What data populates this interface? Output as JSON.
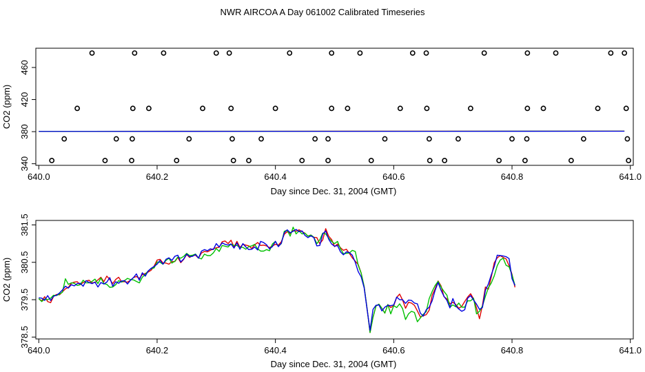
{
  "title": "NWR AIRCOA A  Day 061002  Calibrated Timeseries",
  "colors": {
    "red": "#e00000",
    "green": "#00c000",
    "blue": "#0000e0",
    "axis": "#000000",
    "points": "#000000"
  },
  "chart_data": [
    {
      "type": "scatter",
      "xlabel": "Day since Dec. 31, 2004 (GMT)",
      "ylabel": "CO2 (ppm)",
      "xlim": [
        639.995,
        641.005
      ],
      "ylim": [
        338,
        484
      ],
      "xticks": [
        "640.0",
        "640.2",
        "640.4",
        "640.6",
        "640.8",
        "641.0"
      ],
      "yticks": [
        "340",
        "380",
        "420",
        "460"
      ],
      "points_x": [
        640.09,
        640.162,
        640.211,
        640.3,
        640.322,
        640.424,
        640.495,
        640.543,
        640.632,
        640.655,
        640.753,
        640.826,
        640.874,
        640.967,
        640.99,
        640.065,
        640.159,
        640.186,
        640.277,
        640.325,
        640.4,
        640.495,
        640.522,
        640.611,
        640.656,
        640.73,
        640.826,
        640.853,
        640.945,
        640.993,
        640.043,
        640.131,
        640.158,
        640.254,
        640.327,
        640.376,
        640.467,
        640.489,
        640.585,
        640.66,
        640.709,
        640.8,
        640.825,
        640.921,
        640.995,
        640.022,
        640.112,
        640.157,
        640.233,
        640.329,
        640.355,
        640.445,
        640.489,
        640.562,
        640.661,
        640.686,
        640.778,
        640.822,
        640.9,
        640.997
      ],
      "points_y": [
        478,
        478,
        478,
        478,
        478,
        478,
        478,
        478,
        478,
        478,
        478,
        478,
        478,
        478,
        478,
        409,
        409,
        409,
        409,
        409,
        409,
        409,
        409,
        409,
        409,
        409,
        409,
        409,
        409,
        409,
        371,
        371,
        371,
        371,
        371,
        371,
        371,
        371,
        371,
        371,
        371,
        371,
        371,
        371,
        371,
        344,
        344,
        344,
        344,
        344,
        344,
        344,
        344,
        344,
        344,
        344,
        344,
        344,
        344,
        344
      ],
      "series_x": [
        640.0,
        640.99
      ],
      "series": [
        {
          "color": "red",
          "values": [
            380.4,
            380.7
          ]
        },
        {
          "color": "green",
          "values": [
            380.4,
            380.6
          ]
        },
        {
          "color": "blue",
          "values": [
            380.3,
            380.5
          ]
        }
      ]
    },
    {
      "type": "line",
      "xlabel": "Day since Dec. 31, 2004 (GMT)",
      "ylabel": "CO2 (ppm)",
      "xlim": [
        639.995,
        641.005
      ],
      "ylim": [
        378.45,
        381.62
      ],
      "xticks": [
        "640.0",
        "640.2",
        "640.4",
        "640.6",
        "640.8",
        "641.0"
      ],
      "yticks": [
        "378.5",
        "379.5",
        "380.5",
        "381.5"
      ],
      "x_start": 640.0,
      "x_step": 0.005,
      "series": [
        {
          "color": "red",
          "values": [
            379.52,
            379.47,
            379.58,
            379.45,
            379.42,
            379.59,
            379.64,
            379.63,
            379.71,
            379.79,
            379.83,
            379.94,
            379.97,
            379.98,
            379.9,
            379.96,
            380.0,
            380.02,
            379.95,
            379.96,
            380.03,
            380.1,
            379.98,
            380.13,
            380.04,
            379.93,
            380.04,
            380.1,
            379.98,
            379.98,
            379.97,
            380.02,
            380.09,
            380.12,
            380.07,
            380.17,
            380.2,
            380.24,
            380.29,
            380.4,
            380.56,
            380.58,
            380.48,
            380.48,
            380.45,
            380.52,
            380.52,
            380.63,
            380.49,
            380.58,
            380.71,
            380.63,
            380.68,
            380.69,
            380.61,
            380.75,
            380.79,
            380.78,
            380.82,
            380.86,
            380.89,
            380.9,
            381.05,
            381.07,
            381.0,
            381.09,
            380.91,
            381.06,
            380.9,
            380.98,
            380.96,
            380.94,
            380.87,
            380.97,
            381.03,
            380.95,
            380.96,
            380.94,
            380.89,
            380.94,
            380.98,
            380.96,
            381.05,
            381.25,
            381.32,
            381.27,
            381.35,
            381.33,
            381.37,
            381.32,
            381.28,
            381.2,
            381.23,
            381.17,
            381.16,
            381.0,
            381.1,
            381.4,
            381.2,
            381.11,
            380.92,
            380.99,
            380.89,
            380.82,
            380.85,
            380.74,
            380.62,
            380.53,
            380.44,
            380.21,
            379.85,
            379.26,
            378.62,
            379.03,
            379.33,
            379.38,
            379.27,
            379.14,
            379.37,
            379.29,
            379.34,
            379.56,
            379.65,
            379.49,
            379.27,
            379.43,
            379.41,
            379.35,
            379.2,
            379.04,
            379.07,
            379.1,
            379.22,
            379.62,
            379.79,
            380.0,
            379.87,
            379.58,
            379.52,
            379.39,
            379.43,
            379.37,
            379.27,
            379.32,
            379.45,
            379.57,
            379.66,
            379.52,
            379.28,
            378.99,
            379.35,
            379.84,
            379.78,
            380.11,
            380.49,
            380.62,
            380.68,
            380.63,
            380.59,
            380.41,
            380.18,
            379.83
          ]
        },
        {
          "color": "green",
          "values": [
            379.53,
            379.45,
            379.52,
            379.5,
            379.54,
            379.62,
            379.61,
            379.65,
            379.7,
            380.06,
            379.91,
            379.95,
            379.94,
            379.88,
            379.9,
            380.02,
            379.95,
            379.95,
            379.99,
            380.05,
            379.93,
            380.08,
            379.93,
            379.91,
            379.83,
            379.84,
            379.9,
            380.01,
            379.97,
            380.01,
            380.07,
            380.04,
            380.03,
            379.99,
            379.95,
            380.1,
            380.18,
            380.27,
            380.33,
            380.35,
            380.51,
            380.5,
            380.45,
            380.55,
            380.61,
            380.48,
            380.53,
            380.64,
            380.61,
            380.66,
            380.74,
            380.68,
            380.69,
            380.72,
            380.62,
            380.59,
            380.72,
            380.68,
            380.68,
            380.75,
            380.87,
            380.79,
            380.95,
            380.93,
            380.91,
            380.99,
            380.95,
            380.95,
            380.9,
            380.9,
            380.85,
            380.92,
            380.94,
            380.98,
            380.86,
            380.8,
            380.8,
            380.84,
            380.81,
            380.99,
            381.06,
            380.93,
            381.0,
            381.33,
            381.36,
            381.2,
            381.44,
            381.26,
            381.34,
            381.26,
            381.28,
            381.2,
            381.23,
            381.17,
            381.0,
            381.1,
            381.28,
            381.26,
            381.15,
            381.06,
            381.0,
            381.06,
            380.86,
            380.73,
            380.74,
            380.75,
            380.82,
            380.79,
            380.42,
            380.21,
            379.85,
            379.26,
            378.62,
            379.03,
            379.33,
            379.38,
            379.27,
            379.14,
            379.37,
            379.12,
            379.34,
            379.29,
            379.39,
            379.26,
            378.97,
            379.12,
            379.19,
            379.16,
            378.91,
            379.01,
            379.11,
            379.18,
            379.53,
            379.72,
            379.88,
            379.99,
            379.84,
            379.72,
            379.62,
            379.3,
            379.36,
            379.31,
            379.41,
            379.3,
            379.3,
            379.47,
            379.47,
            379.54,
            379.12,
            379.19,
            379.33,
            379.59,
            379.82,
            379.95,
            380.14,
            380.41,
            380.56,
            380.61,
            380.42,
            380.38,
            380.16,
            379.88
          ]
        },
        {
          "color": "blue",
          "values": [
            379.55,
            379.54,
            379.48,
            379.61,
            379.48,
            379.59,
            379.62,
            379.68,
            379.76,
            379.86,
            379.81,
            379.9,
            379.87,
            379.93,
            379.94,
            379.86,
            380.01,
            379.96,
            379.93,
            379.97,
            379.84,
            379.96,
            379.92,
            379.97,
            380.09,
            379.86,
            379.98,
            379.94,
            380.0,
            380.01,
            379.92,
            380.02,
            380.09,
            380.19,
            380.02,
            380.22,
            380.13,
            380.27,
            380.34,
            380.39,
            380.45,
            380.55,
            380.45,
            380.58,
            380.62,
            380.55,
            380.66,
            380.69,
            380.51,
            380.59,
            380.72,
            380.65,
            380.66,
            380.71,
            380.61,
            380.8,
            380.84,
            380.81,
            380.86,
            380.84,
            381.0,
            380.91,
            381.02,
            380.98,
            380.96,
            380.99,
            380.88,
            381.02,
            380.85,
            381.0,
            380.91,
            380.84,
            380.85,
            380.91,
            380.83,
            381.06,
            381.03,
            380.97,
            380.86,
            380.92,
            381.06,
            380.92,
            381.01,
            381.29,
            381.37,
            381.29,
            381.33,
            381.38,
            381.32,
            381.34,
            381.22,
            381.16,
            381.21,
            381.16,
            380.94,
            380.95,
            381.26,
            381.34,
            381.12,
            380.99,
            380.93,
            380.95,
            380.78,
            380.7,
            380.78,
            380.76,
            380.69,
            380.5,
            380.25,
            380.11,
            379.82,
            379.24,
            378.68,
            379.24,
            379.35,
            379.36,
            379.2,
            379.3,
            379.35,
            379.34,
            379.36,
            379.57,
            379.5,
            379.5,
            379.4,
            379.49,
            379.48,
            379.41,
            379.39,
            379.14,
            379.06,
            379.23,
            379.3,
            379.47,
            379.75,
            379.96,
            379.75,
            379.59,
            379.48,
            379.28,
            379.53,
            379.33,
            379.25,
            379.19,
            379.23,
            379.54,
            379.61,
            379.49,
            379.38,
            379.24,
            379.29,
            379.75,
            379.92,
            380.17,
            380.39,
            380.69,
            380.68,
            380.67,
            380.65,
            380.6,
            380.06,
            379.88
          ]
        }
      ]
    }
  ]
}
